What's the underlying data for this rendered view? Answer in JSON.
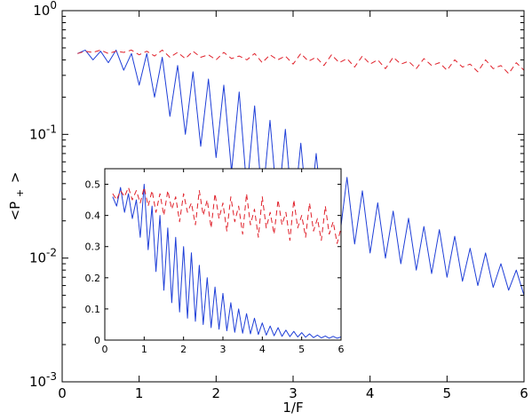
{
  "chart_data": [
    {
      "type": "line",
      "role": "main",
      "xlabel": "1/F",
      "ylabel_main": "<P",
      "ylabel_sub": "+",
      "ylabel_close": ">",
      "xlim": [
        0,
        6
      ],
      "ylim": [
        0.001,
        1
      ],
      "yscale": "log",
      "grid": false,
      "x_ticks": [
        0,
        1,
        2,
        3,
        4,
        5,
        6
      ],
      "x_tick_labels": [
        "0",
        "1",
        "2",
        "3",
        "4",
        "5",
        "6"
      ],
      "y_ticks": [
        0.001,
        0.01,
        0.1,
        1
      ],
      "y_tick_labels": [
        {
          "base": "10",
          "exp": "-3"
        },
        {
          "base": "10",
          "exp": "-2"
        },
        {
          "base": "10",
          "exp": "-1"
        },
        {
          "base": "10",
          "exp": "0"
        }
      ],
      "series": [
        {
          "style": "solid",
          "color": "#1f3fd8",
          "x": [
            0.2,
            0.3,
            0.4,
            0.5,
            0.6,
            0.7,
            0.8,
            0.9,
            1.0,
            1.1,
            1.2,
            1.3,
            1.4,
            1.5,
            1.6,
            1.7,
            1.8,
            1.9,
            2.0,
            2.1,
            2.2,
            2.3,
            2.4,
            2.5,
            2.6,
            2.7,
            2.8,
            2.9,
            3.0,
            3.1,
            3.2,
            3.3,
            3.4,
            3.5,
            3.6,
            3.7,
            3.8,
            3.9,
            4.0,
            4.1,
            4.2,
            4.3,
            4.4,
            4.5,
            4.6,
            4.7,
            4.8,
            4.9,
            5.0,
            5.1,
            5.2,
            5.3,
            5.4,
            5.5,
            5.6,
            5.7,
            5.8,
            5.9,
            6.0
          ],
          "y": [
            0.45,
            0.48,
            0.4,
            0.47,
            0.38,
            0.48,
            0.33,
            0.45,
            0.25,
            0.45,
            0.2,
            0.42,
            0.14,
            0.36,
            0.1,
            0.32,
            0.08,
            0.28,
            0.065,
            0.25,
            0.05,
            0.22,
            0.035,
            0.17,
            0.028,
            0.13,
            0.024,
            0.11,
            0.02,
            0.085,
            0.018,
            0.07,
            0.016,
            0.05,
            0.014,
            0.045,
            0.013,
            0.035,
            0.011,
            0.028,
            0.01,
            0.024,
            0.009,
            0.021,
            0.008,
            0.018,
            0.0075,
            0.017,
            0.007,
            0.015,
            0.0065,
            0.012,
            0.006,
            0.011,
            0.0058,
            0.009,
            0.0055,
            0.008,
            0.005
          ]
        },
        {
          "style": "dashed",
          "color": "#e0202a",
          "x": [
            0.2,
            0.3,
            0.4,
            0.5,
            0.6,
            0.7,
            0.8,
            0.9,
            1.0,
            1.1,
            1.2,
            1.3,
            1.4,
            1.5,
            1.6,
            1.7,
            1.8,
            1.9,
            2.0,
            2.1,
            2.2,
            2.3,
            2.4,
            2.5,
            2.6,
            2.7,
            2.8,
            2.9,
            3.0,
            3.1,
            3.2,
            3.3,
            3.4,
            3.5,
            3.6,
            3.7,
            3.8,
            3.9,
            4.0,
            4.1,
            4.2,
            4.3,
            4.4,
            4.5,
            4.6,
            4.7,
            4.8,
            4.9,
            5.0,
            5.1,
            5.2,
            5.3,
            5.4,
            5.5,
            5.6,
            5.7,
            5.8,
            5.9,
            6.0
          ],
          "y": [
            0.45,
            0.47,
            0.46,
            0.48,
            0.45,
            0.47,
            0.46,
            0.48,
            0.44,
            0.47,
            0.43,
            0.48,
            0.42,
            0.46,
            0.41,
            0.47,
            0.42,
            0.44,
            0.4,
            0.46,
            0.41,
            0.43,
            0.4,
            0.45,
            0.38,
            0.44,
            0.4,
            0.43,
            0.37,
            0.45,
            0.39,
            0.42,
            0.36,
            0.44,
            0.38,
            0.41,
            0.35,
            0.43,
            0.37,
            0.4,
            0.34,
            0.42,
            0.37,
            0.39,
            0.34,
            0.41,
            0.36,
            0.38,
            0.33,
            0.4,
            0.35,
            0.37,
            0.32,
            0.4,
            0.34,
            0.36,
            0.31,
            0.38,
            0.33
          ]
        }
      ]
    },
    {
      "type": "line",
      "role": "inset",
      "xlim": [
        0,
        6
      ],
      "ylim": [
        0,
        0.55
      ],
      "yscale": "linear",
      "grid": false,
      "x_ticks": [
        0,
        1,
        2,
        3,
        4,
        5,
        6
      ],
      "x_tick_labels": [
        "0",
        "1",
        "2",
        "3",
        "4",
        "5",
        "6"
      ],
      "y_ticks": [
        0,
        0.1,
        0.2,
        0.3,
        0.4,
        0.5
      ],
      "y_tick_labels": [
        "0",
        "0.1",
        "0.2",
        "0.3",
        "0.4",
        "0.5"
      ],
      "series": [
        {
          "style": "solid",
          "color": "#1f3fd8",
          "x": [
            0.2,
            0.3,
            0.4,
            0.5,
            0.6,
            0.7,
            0.8,
            0.9,
            1.0,
            1.1,
            1.2,
            1.3,
            1.4,
            1.5,
            1.6,
            1.7,
            1.8,
            1.9,
            2.0,
            2.1,
            2.2,
            2.3,
            2.4,
            2.5,
            2.6,
            2.7,
            2.8,
            2.9,
            3.0,
            3.1,
            3.2,
            3.3,
            3.4,
            3.5,
            3.6,
            3.7,
            3.8,
            3.9,
            4.0,
            4.1,
            4.2,
            4.3,
            4.4,
            4.5,
            4.6,
            4.7,
            4.8,
            4.9,
            5.0,
            5.1,
            5.2,
            5.3,
            5.4,
            5.5,
            5.6,
            5.7,
            5.8,
            5.9,
            6.0
          ],
          "y": [
            0.46,
            0.43,
            0.49,
            0.41,
            0.47,
            0.39,
            0.45,
            0.33,
            0.5,
            0.29,
            0.43,
            0.22,
            0.4,
            0.16,
            0.36,
            0.12,
            0.33,
            0.09,
            0.3,
            0.07,
            0.28,
            0.06,
            0.24,
            0.05,
            0.2,
            0.04,
            0.17,
            0.035,
            0.15,
            0.03,
            0.12,
            0.025,
            0.1,
            0.022,
            0.085,
            0.02,
            0.07,
            0.018,
            0.055,
            0.016,
            0.045,
            0.014,
            0.04,
            0.012,
            0.032,
            0.011,
            0.028,
            0.01,
            0.024,
            0.009,
            0.02,
            0.008,
            0.016,
            0.007,
            0.013,
            0.006,
            0.012,
            0.006,
            0.01
          ]
        },
        {
          "style": "dashed",
          "color": "#e0202a",
          "x": [
            0.2,
            0.3,
            0.4,
            0.5,
            0.6,
            0.7,
            0.8,
            0.9,
            1.0,
            1.1,
            1.2,
            1.3,
            1.4,
            1.5,
            1.6,
            1.7,
            1.8,
            1.9,
            2.0,
            2.1,
            2.2,
            2.3,
            2.4,
            2.5,
            2.6,
            2.7,
            2.8,
            2.9,
            3.0,
            3.1,
            3.2,
            3.3,
            3.4,
            3.5,
            3.6,
            3.7,
            3.8,
            3.9,
            4.0,
            4.1,
            4.2,
            4.3,
            4.4,
            4.5,
            4.6,
            4.7,
            4.8,
            4.9,
            5.0,
            5.1,
            5.2,
            5.3,
            5.4,
            5.5,
            5.6,
            5.7,
            5.8,
            5.9,
            6.0
          ],
          "y": [
            0.47,
            0.45,
            0.48,
            0.46,
            0.49,
            0.45,
            0.48,
            0.44,
            0.49,
            0.43,
            0.48,
            0.41,
            0.47,
            0.4,
            0.48,
            0.42,
            0.46,
            0.38,
            0.47,
            0.41,
            0.44,
            0.37,
            0.48,
            0.4,
            0.45,
            0.36,
            0.47,
            0.39,
            0.44,
            0.35,
            0.46,
            0.38,
            0.43,
            0.34,
            0.47,
            0.37,
            0.42,
            0.33,
            0.46,
            0.36,
            0.41,
            0.34,
            0.45,
            0.37,
            0.41,
            0.32,
            0.45,
            0.36,
            0.4,
            0.33,
            0.44,
            0.35,
            0.39,
            0.32,
            0.43,
            0.34,
            0.38,
            0.31,
            0.36
          ]
        }
      ]
    }
  ]
}
